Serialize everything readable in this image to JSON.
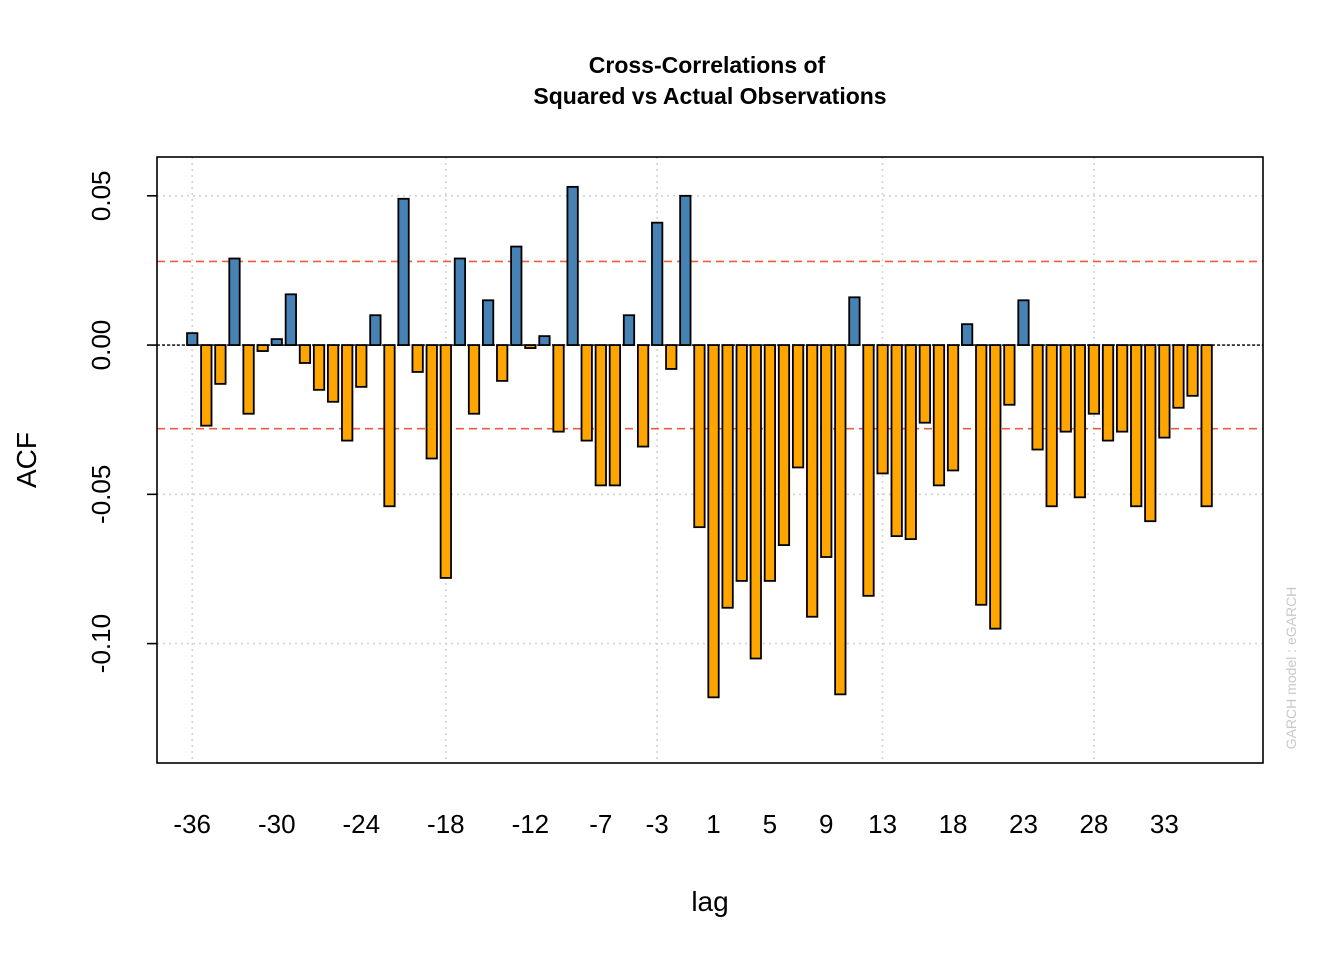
{
  "chart_data": {
    "type": "bar",
    "title_line1": "Cross-Correlations of",
    "title_line2": "Squared vs Actual Observations",
    "xlabel": "lag",
    "ylabel": "ACF",
    "watermark": "GARCH model :  eGARCH",
    "xlim": [
      -38.5,
      40
    ],
    "ylim": [
      -0.14,
      0.063
    ],
    "x_tick_labels": [
      "-36",
      "-30",
      "-24",
      "-18",
      "-12",
      "-7",
      "-3",
      "1",
      "5",
      "9",
      "13",
      "18",
      "23",
      "28",
      "33"
    ],
    "x_ticks": [
      -36,
      -30,
      -24,
      -18,
      -12,
      -7,
      -3,
      1,
      5,
      9,
      13,
      18,
      23,
      28,
      33
    ],
    "y_ticks": [
      0.05,
      0.0,
      -0.05,
      -0.1
    ],
    "y_tick_labels": [
      "0.05",
      "0.00",
      "-0.05",
      "-0.10"
    ],
    "confidence_band": 0.028,
    "grid": true,
    "positive_color": "#4682B4",
    "negative_color": "#FFA500",
    "band_color": "#EE5C42",
    "lags": [
      -36,
      -35,
      -34,
      -33,
      -32,
      -31,
      -30,
      -29,
      -28,
      -27,
      -26,
      -25,
      -24,
      -23,
      -22,
      -21,
      -20,
      -19,
      -18,
      -17,
      -16,
      -15,
      -14,
      -13,
      -12,
      -11,
      -10,
      -9,
      -8,
      -7,
      -6,
      -5,
      -4,
      -3,
      -2,
      -1,
      0,
      1,
      2,
      3,
      4,
      5,
      6,
      7,
      8,
      9,
      10,
      11,
      12,
      13,
      14,
      15,
      16,
      17,
      18,
      19,
      20,
      21,
      22,
      23,
      24,
      25,
      26,
      27,
      28,
      29,
      30,
      31,
      32,
      33,
      34,
      35,
      36
    ],
    "values": [
      0.004,
      -0.027,
      -0.013,
      0.029,
      -0.023,
      -0.002,
      0.002,
      0.017,
      -0.006,
      -0.015,
      -0.019,
      -0.032,
      -0.014,
      0.01,
      -0.054,
      0.049,
      -0.009,
      -0.038,
      -0.078,
      0.029,
      -0.023,
      0.015,
      -0.012,
      0.033,
      -0.001,
      0.003,
      -0.029,
      0.053,
      -0.032,
      -0.047,
      -0.047,
      0.01,
      -0.034,
      0.041,
      -0.008,
      0.05,
      -0.061,
      -0.118,
      -0.088,
      -0.079,
      -0.105,
      -0.079,
      -0.067,
      -0.041,
      -0.091,
      -0.071,
      -0.117,
      0.016,
      -0.084,
      -0.043,
      -0.064,
      -0.065,
      -0.026,
      -0.047,
      -0.042,
      0.007,
      -0.087,
      -0.095,
      -0.02,
      0.015,
      -0.035,
      -0.054,
      -0.029,
      -0.051,
      -0.023,
      -0.032,
      -0.029,
      -0.054,
      -0.059,
      -0.031,
      -0.021,
      -0.017,
      -0.054
    ]
  }
}
